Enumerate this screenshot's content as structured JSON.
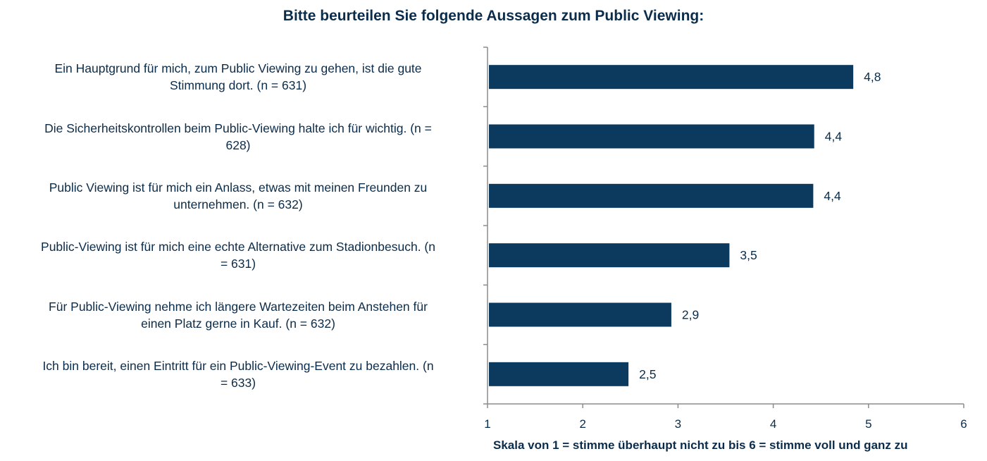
{
  "chart_data": {
    "type": "bar",
    "orientation": "horizontal",
    "title": "Bitte beurteilen Sie folgende Aussagen zum Public Viewing:",
    "xlabel": "Skala von 1 = stimme überhaupt nicht zu bis 6 = stimme voll und ganz zu",
    "ylabel": "",
    "xlim": [
      1,
      6
    ],
    "xticks": [
      "1",
      "2",
      "3",
      "4",
      "5",
      "6"
    ],
    "categories": [
      "Ein Hauptgrund für mich, zum Public Viewing zu gehen, ist die gute Stimmung dort. (n = 631)",
      "Die Sicherheitskontrollen beim Public-Viewing halte ich für wichtig. (n = 628)",
      "Public Viewing ist für mich ein Anlass, etwas mit meinen Freunden zu unternehmen. (n = 632)",
      "Public-Viewing ist für mich eine echte Alternative zum Stadionbesuch. (n = 631)",
      "Für Public-Viewing nehme ich längere Wartezeiten beim Anstehen für einen Platz gerne in Kauf. (n = 632)",
      "Ich bin bereit, einen Eintritt für ein Public-Viewing-Event zu bezahlen. (n = 633)"
    ],
    "category_lines": [
      [
        "Ein Hauptgrund für mich, zum Public Viewing zu gehen, ist die gute",
        "Stimmung dort. (n = 631)"
      ],
      [
        "Die Sicherheitskontrollen beim Public-Viewing halte ich für wichtig. (n =",
        "628)"
      ],
      [
        "Public Viewing ist für mich ein Anlass, etwas mit meinen Freunden zu",
        "unternehmen. (n = 632)"
      ],
      [
        "Public-Viewing ist für mich eine echte Alternative zum Stadionbesuch. (n",
        "= 631)"
      ],
      [
        "Für Public-Viewing nehme ich längere Wartezeiten beim Anstehen für",
        "einen Platz gerne in Kauf. (n = 632)"
      ],
      [
        "Ich bin bereit, einen Eintritt für ein Public-Viewing-Event zu bezahlen. (n",
        "= 633)"
      ]
    ],
    "values": [
      4.84,
      4.43,
      4.42,
      3.54,
      2.93,
      2.48
    ],
    "value_labels": [
      "4,8",
      "4,4",
      "4,4",
      "3,5",
      "2,9",
      "2,5"
    ],
    "bar_color": "#0b3a5e",
    "grid": false,
    "legend": "none"
  }
}
